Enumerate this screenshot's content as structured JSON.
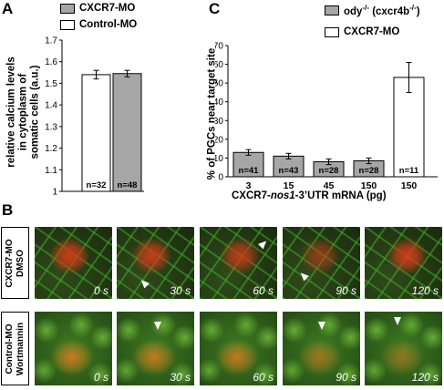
{
  "panels": {
    "a": "A",
    "b": "B",
    "c": "C"
  },
  "panel_a": {
    "ylabel_lines": [
      "relative calcium levels",
      "in cytoplasm of",
      "somatic cells (a.u.)"
    ],
    "legend": [
      {
        "label": "CXCR7-MO",
        "color": "#a6a6a6"
      },
      {
        "label": "Control-MO",
        "color": "#ffffff"
      }
    ]
  },
  "panel_c": {
    "ylabel": "% of PGCs near target site",
    "xlabel_prefix": "CXCR7-",
    "xlabel_italic": "nos1",
    "xlabel_suffix": "-3’UTR mRNA (pg)",
    "legend": [
      {
        "label": "ody",
        "sup": "-/-",
        "label_tail": " (cxcr4b",
        "sup2": "-/-",
        "label_end": ")",
        "color": "#a6a6a6"
      },
      {
        "label": "CXCR7-MO",
        "color": "#ffffff"
      }
    ]
  },
  "chart_data": [
    {
      "type": "bar",
      "panel": "A",
      "categories": [
        "Control-MO",
        "CXCR7-MO"
      ],
      "values": [
        1.54,
        1.545
      ],
      "errors": [
        0.02,
        0.015
      ],
      "bar_labels": [
        "n=32",
        "n=48"
      ],
      "colors": [
        "#ffffff",
        "#a6a6a6"
      ],
      "ylim": [
        1.0,
        1.7
      ],
      "yticks": [
        "1",
        "1.1",
        "1.2",
        "1.3",
        "1.4",
        "1.5",
        "1.6",
        "1.7"
      ],
      "ytick_values": [
        1.0,
        1.1,
        1.2,
        1.3,
        1.4,
        1.5,
        1.6,
        1.7
      ],
      "ylabel": "relative calcium levels in cytoplasm of somatic cells (a.u.)",
      "legend_position": "top",
      "grid": false
    },
    {
      "type": "bar",
      "panel": "C",
      "categories": [
        "3",
        "15",
        "45",
        "150",
        "150"
      ],
      "values": [
        13,
        11,
        8,
        8.5,
        53
      ],
      "errors": [
        1.5,
        1.5,
        1.5,
        1.5,
        8
      ],
      "bar_labels": [
        "n=41",
        "n=43",
        "n=28",
        "n=28",
        "n=11"
      ],
      "colors": [
        "#a6a6a6",
        "#a6a6a6",
        "#a6a6a6",
        "#a6a6a6",
        "#ffffff"
      ],
      "ylim": [
        0,
        70
      ],
      "yticks": [
        "0",
        "10",
        "20",
        "30",
        "40",
        "50",
        "60",
        "70"
      ],
      "ytick_values": [
        0,
        10,
        20,
        30,
        40,
        50,
        60,
        70
      ],
      "ylabel": "% of PGCs near target site",
      "xlabel": "CXCR7-nos1-3’UTR mRNA (pg)",
      "legend_position": "top",
      "grid": false
    }
  ],
  "panel_b": {
    "rows": [
      {
        "label_lines": [
          "CXCR7-MO",
          "DMSO"
        ],
        "times": [
          "0 s",
          "30 s",
          "60 s",
          "90 s",
          "120 s"
        ]
      },
      {
        "label_lines": [
          "Control-MO",
          "Wortmannin"
        ],
        "times": [
          "0 s",
          "30 s",
          "60 s",
          "90 s",
          "120 s"
        ]
      }
    ]
  }
}
